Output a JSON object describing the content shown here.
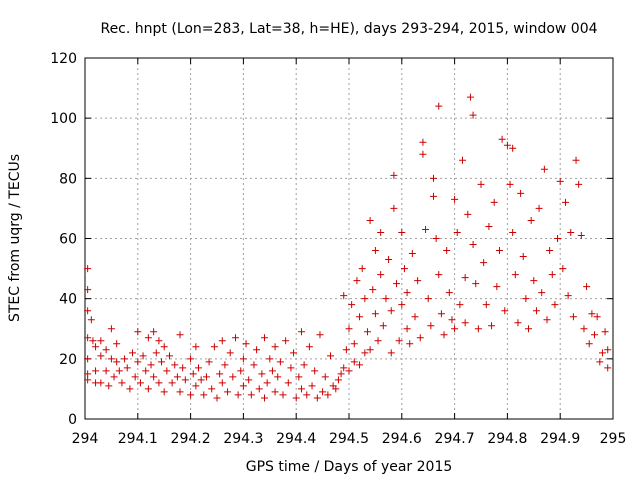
{
  "chart_data": {
    "type": "scatter",
    "title": "Rec. hnpt (Lon=283, Lat=38, h=HE), days 293-294, 2015, window 004",
    "xlabel": "GPS time / Days of year 2015",
    "ylabel": "STEC from uqrg / TECUs",
    "xlim": [
      294,
      295
    ],
    "ylim": [
      0,
      120
    ],
    "xticks": [
      "294",
      "294.1",
      "294.2",
      "294.3",
      "294.4",
      "294.5",
      "294.6",
      "294.7",
      "294.8",
      "294.9",
      "295"
    ],
    "yticks": [
      "0",
      "20",
      "40",
      "60",
      "80",
      "100",
      "120"
    ],
    "grid": true,
    "marker": "plus",
    "color": "#cc0000",
    "points": [
      [
        294.005,
        50
      ],
      [
        294.005,
        43
      ],
      [
        294.005,
        36
      ],
      [
        294.005,
        27
      ],
      [
        294.005,
        20
      ],
      [
        294.005,
        15
      ],
      [
        294.005,
        13
      ],
      [
        294.012,
        33
      ],
      [
        294.015,
        26
      ],
      [
        294.02,
        24
      ],
      [
        294.02,
        16
      ],
      [
        294.02,
        12
      ],
      [
        294.03,
        26
      ],
      [
        294.03,
        21
      ],
      [
        294.03,
        12
      ],
      [
        294.04,
        23
      ],
      [
        294.04,
        16
      ],
      [
        294.045,
        11
      ],
      [
        294.05,
        30
      ],
      [
        294.05,
        20
      ],
      [
        294.055,
        14
      ],
      [
        294.06,
        25
      ],
      [
        294.06,
        19
      ],
      [
        294.065,
        16
      ],
      [
        294.07,
        12
      ],
      [
        294.075,
        20
      ],
      [
        294.08,
        17
      ],
      [
        294.085,
        10
      ],
      [
        294.09,
        22
      ],
      [
        294.095,
        14
      ],
      [
        294.1,
        29
      ],
      [
        294.1,
        19
      ],
      [
        294.105,
        12
      ],
      [
        294.11,
        21
      ],
      [
        294.115,
        16
      ],
      [
        294.12,
        27
      ],
      [
        294.12,
        10
      ],
      [
        294.125,
        18
      ],
      [
        294.13,
        29
      ],
      [
        294.13,
        14
      ],
      [
        294.135,
        22
      ],
      [
        294.14,
        26
      ],
      [
        294.14,
        12
      ],
      [
        294.145,
        19
      ],
      [
        294.15,
        24
      ],
      [
        294.15,
        9
      ],
      [
        294.155,
        16
      ],
      [
        294.16,
        21
      ],
      [
        294.165,
        12
      ],
      [
        294.17,
        18
      ],
      [
        294.175,
        14
      ],
      [
        294.18,
        28
      ],
      [
        294.18,
        9
      ],
      [
        294.185,
        17
      ],
      [
        294.19,
        13
      ],
      [
        294.2,
        20
      ],
      [
        294.2,
        8
      ],
      [
        294.205,
        15
      ],
      [
        294.21,
        24
      ],
      [
        294.21,
        11
      ],
      [
        294.215,
        17
      ],
      [
        294.22,
        13
      ],
      [
        294.225,
        8
      ],
      [
        294.23,
        14
      ],
      [
        294.235,
        19
      ],
      [
        294.24,
        10
      ],
      [
        294.245,
        24
      ],
      [
        294.25,
        7
      ],
      [
        294.255,
        15
      ],
      [
        294.26,
        26
      ],
      [
        294.26,
        12
      ],
      [
        294.265,
        18
      ],
      [
        294.27,
        9
      ],
      [
        294.275,
        22
      ],
      [
        294.28,
        14
      ],
      [
        294.285,
        27
      ],
      [
        294.29,
        8
      ],
      [
        294.295,
        16
      ],
      [
        294.3,
        20
      ],
      [
        294.3,
        11
      ],
      [
        294.305,
        25
      ],
      [
        294.31,
        13
      ],
      [
        294.315,
        8
      ],
      [
        294.32,
        18
      ],
      [
        294.325,
        23
      ],
      [
        294.33,
        10
      ],
      [
        294.335,
        15
      ],
      [
        294.34,
        27
      ],
      [
        294.34,
        7
      ],
      [
        294.345,
        12
      ],
      [
        294.35,
        20
      ],
      [
        294.355,
        16
      ],
      [
        294.36,
        24
      ],
      [
        294.36,
        9
      ],
      [
        294.365,
        14
      ],
      [
        294.37,
        19
      ],
      [
        294.375,
        8
      ],
      [
        294.38,
        26
      ],
      [
        294.385,
        12
      ],
      [
        294.39,
        17
      ],
      [
        294.395,
        22
      ],
      [
        294.4,
        7
      ],
      [
        294.405,
        14
      ],
      [
        294.41,
        29
      ],
      [
        294.41,
        10
      ],
      [
        294.415,
        18
      ],
      [
        294.42,
        8
      ],
      [
        294.425,
        24
      ],
      [
        294.43,
        11
      ],
      [
        294.435,
        16
      ],
      [
        294.44,
        7
      ],
      [
        294.445,
        28
      ],
      [
        294.45,
        9
      ],
      [
        294.455,
        14
      ],
      [
        294.46,
        8
      ],
      [
        294.465,
        21
      ],
      [
        294.47,
        11
      ],
      [
        294.475,
        10
      ],
      [
        294.48,
        13
      ],
      [
        294.485,
        15
      ],
      [
        294.49,
        17
      ],
      [
        294.49,
        41
      ],
      [
        294.495,
        23
      ],
      [
        294.5,
        16
      ],
      [
        294.5,
        30
      ],
      [
        294.505,
        38
      ],
      [
        294.51,
        19
      ],
      [
        294.51,
        25
      ],
      [
        294.515,
        46
      ],
      [
        294.52,
        18
      ],
      [
        294.52,
        34
      ],
      [
        294.525,
        50
      ],
      [
        294.53,
        22
      ],
      [
        294.53,
        40
      ],
      [
        294.535,
        29
      ],
      [
        294.54,
        66
      ],
      [
        294.54,
        23
      ],
      [
        294.545,
        43
      ],
      [
        294.55,
        35
      ],
      [
        294.55,
        56
      ],
      [
        294.555,
        26
      ],
      [
        294.56,
        48
      ],
      [
        294.56,
        62
      ],
      [
        294.565,
        31
      ],
      [
        294.57,
        40
      ],
      [
        294.575,
        53
      ],
      [
        294.58,
        22
      ],
      [
        294.58,
        36
      ],
      [
        294.585,
        81
      ],
      [
        294.585,
        70
      ],
      [
        294.59,
        45
      ],
      [
        294.595,
        26
      ],
      [
        294.6,
        62
      ],
      [
        294.6,
        38
      ],
      [
        294.605,
        50
      ],
      [
        294.61,
        30
      ],
      [
        294.61,
        42
      ],
      [
        294.615,
        25
      ],
      [
        294.62,
        55
      ],
      [
        294.625,
        34
      ],
      [
        294.63,
        46
      ],
      [
        294.635,
        27
      ],
      [
        294.64,
        92
      ],
      [
        294.64,
        88
      ],
      [
        294.645,
        63
      ],
      [
        294.65,
        40
      ],
      [
        294.655,
        31
      ],
      [
        294.66,
        80
      ],
      [
        294.66,
        74
      ],
      [
        294.665,
        60
      ],
      [
        294.67,
        104
      ],
      [
        294.67,
        48
      ],
      [
        294.675,
        35
      ],
      [
        294.68,
        28
      ],
      [
        294.685,
        56
      ],
      [
        294.69,
        42
      ],
      [
        294.695,
        33
      ],
      [
        294.7,
        73
      ],
      [
        294.7,
        30
      ],
      [
        294.705,
        62
      ],
      [
        294.71,
        38
      ],
      [
        294.715,
        86
      ],
      [
        294.72,
        47
      ],
      [
        294.72,
        32
      ],
      [
        294.725,
        68
      ],
      [
        294.73,
        107
      ],
      [
        294.735,
        101
      ],
      [
        294.735,
        58
      ],
      [
        294.74,
        45
      ],
      [
        294.745,
        30
      ],
      [
        294.75,
        78
      ],
      [
        294.755,
        52
      ],
      [
        294.76,
        38
      ],
      [
        294.765,
        64
      ],
      [
        294.77,
        31
      ],
      [
        294.775,
        72
      ],
      [
        294.78,
        44
      ],
      [
        294.785,
        56
      ],
      [
        294.79,
        93
      ],
      [
        294.795,
        36
      ],
      [
        294.8,
        91
      ],
      [
        294.805,
        78
      ],
      [
        294.81,
        90
      ],
      [
        294.81,
        62
      ],
      [
        294.815,
        48
      ],
      [
        294.82,
        32
      ],
      [
        294.825,
        75
      ],
      [
        294.83,
        54
      ],
      [
        294.835,
        40
      ],
      [
        294.84,
        30
      ],
      [
        294.845,
        66
      ],
      [
        294.85,
        46
      ],
      [
        294.855,
        36
      ],
      [
        294.86,
        70
      ],
      [
        294.865,
        42
      ],
      [
        294.87,
        83
      ],
      [
        294.875,
        33
      ],
      [
        294.88,
        56
      ],
      [
        294.885,
        48
      ],
      [
        294.89,
        38
      ],
      [
        294.895,
        60
      ],
      [
        294.9,
        79
      ],
      [
        294.905,
        50
      ],
      [
        294.91,
        72
      ],
      [
        294.915,
        41
      ],
      [
        294.92,
        62
      ],
      [
        294.925,
        34
      ],
      [
        294.93,
        86
      ],
      [
        294.935,
        78
      ],
      [
        294.94,
        61
      ],
      [
        294.945,
        30
      ],
      [
        294.95,
        44
      ],
      [
        294.955,
        25
      ],
      [
        294.96,
        35
      ],
      [
        294.965,
        28
      ],
      [
        294.97,
        34
      ],
      [
        294.975,
        19
      ],
      [
        294.98,
        22
      ],
      [
        294.985,
        29
      ],
      [
        294.99,
        23
      ],
      [
        294.99,
        17
      ]
    ]
  }
}
